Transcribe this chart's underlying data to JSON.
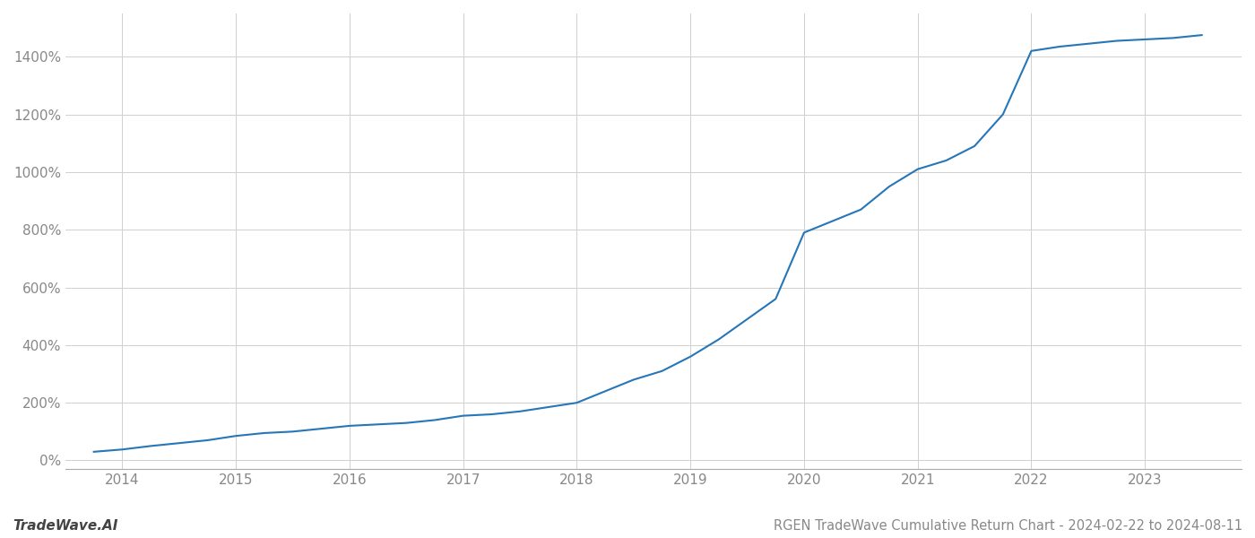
{
  "title": "RGEN TradeWave Cumulative Return Chart - 2024-02-22 to 2024-08-11",
  "watermark": "TradeWave.AI",
  "line_color": "#2676b8",
  "background_color": "#ffffff",
  "grid_color": "#d0d0d0",
  "x_years": [
    2014,
    2015,
    2016,
    2017,
    2018,
    2019,
    2020,
    2021,
    2022,
    2023
  ],
  "x_data": [
    2013.75,
    2014.0,
    2014.25,
    2014.5,
    2014.75,
    2015.0,
    2015.25,
    2015.5,
    2015.75,
    2016.0,
    2016.25,
    2016.5,
    2016.75,
    2017.0,
    2017.25,
    2017.5,
    2017.75,
    2018.0,
    2018.25,
    2018.5,
    2018.75,
    2019.0,
    2019.25,
    2019.5,
    2019.75,
    2020.0,
    2020.25,
    2020.5,
    2020.75,
    2021.0,
    2021.25,
    2021.5,
    2021.75,
    2022.0,
    2022.25,
    2022.5,
    2022.75,
    2023.0,
    2023.25,
    2023.5
  ],
  "y_data": [
    30,
    38,
    50,
    60,
    70,
    85,
    95,
    100,
    110,
    120,
    125,
    130,
    140,
    155,
    160,
    170,
    185,
    200,
    240,
    280,
    310,
    360,
    420,
    490,
    560,
    790,
    830,
    870,
    950,
    1010,
    1040,
    1090,
    1200,
    1420,
    1435,
    1445,
    1455,
    1460,
    1465,
    1475
  ],
  "yticks": [
    0,
    200,
    400,
    600,
    800,
    1000,
    1200,
    1400
  ],
  "ylim": [
    -30,
    1550
  ],
  "xlim": [
    2013.5,
    2023.85
  ],
  "title_fontsize": 10.5,
  "tick_fontsize": 11,
  "watermark_fontsize": 11,
  "axis_label_color": "#888888",
  "title_color": "#888888"
}
